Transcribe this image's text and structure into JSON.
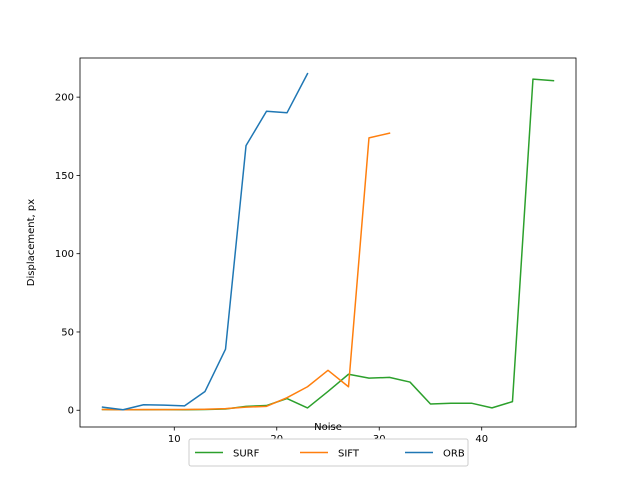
{
  "chart_data": {
    "type": "line",
    "title": "",
    "xlabel": "Noise",
    "ylabel": "Displacement, px",
    "xlim": [
      0.8,
      49.2
    ],
    "ylim": [
      -10.7,
      225.0
    ],
    "xticks": [
      10,
      20,
      30,
      40
    ],
    "yticks": [
      0,
      50,
      100,
      150,
      200
    ],
    "grid": false,
    "legend_position": "bottom-center",
    "series": [
      {
        "name": "SURF",
        "color": "#2ca02c",
        "points": [
          [
            3,
            0.5
          ],
          [
            5,
            0.3
          ],
          [
            7,
            0.3
          ],
          [
            9,
            0.4
          ],
          [
            11,
            0.3
          ],
          [
            13,
            0.5
          ],
          [
            15,
            0.8
          ],
          [
            17,
            2.5
          ],
          [
            19,
            3.0
          ],
          [
            21,
            7.5
          ],
          [
            23,
            1.5
          ],
          [
            25,
            12
          ],
          [
            27,
            23
          ],
          [
            29,
            20.5
          ],
          [
            31,
            21
          ],
          [
            33,
            18
          ],
          [
            35,
            4
          ],
          [
            37,
            4.5
          ],
          [
            39,
            4.5
          ],
          [
            41,
            1.5
          ],
          [
            43,
            5.5
          ],
          [
            45,
            211.5
          ],
          [
            47,
            210.5
          ]
        ]
      },
      {
        "name": "SIFT",
        "color": "#ff7f0e",
        "points": [
          [
            3,
            0.5
          ],
          [
            5,
            0.3
          ],
          [
            7,
            0.5
          ],
          [
            9,
            0.4
          ],
          [
            11,
            0.5
          ],
          [
            13,
            0.6
          ],
          [
            15,
            1.0
          ],
          [
            17,
            2.0
          ],
          [
            19,
            2.5
          ],
          [
            21,
            8.0
          ],
          [
            23,
            15
          ],
          [
            25,
            25.5
          ],
          [
            27,
            15
          ],
          [
            29,
            174
          ],
          [
            31,
            177
          ]
        ]
      },
      {
        "name": "ORB",
        "color": "#1f77b4",
        "points": [
          [
            3,
            2
          ],
          [
            5,
            0.3
          ],
          [
            7,
            3.5
          ],
          [
            9,
            3.3
          ],
          [
            11,
            2.8
          ],
          [
            13,
            12
          ],
          [
            15,
            39
          ],
          [
            17,
            169
          ],
          [
            19,
            191
          ],
          [
            21,
            190
          ],
          [
            23,
            215
          ]
        ]
      }
    ]
  }
}
